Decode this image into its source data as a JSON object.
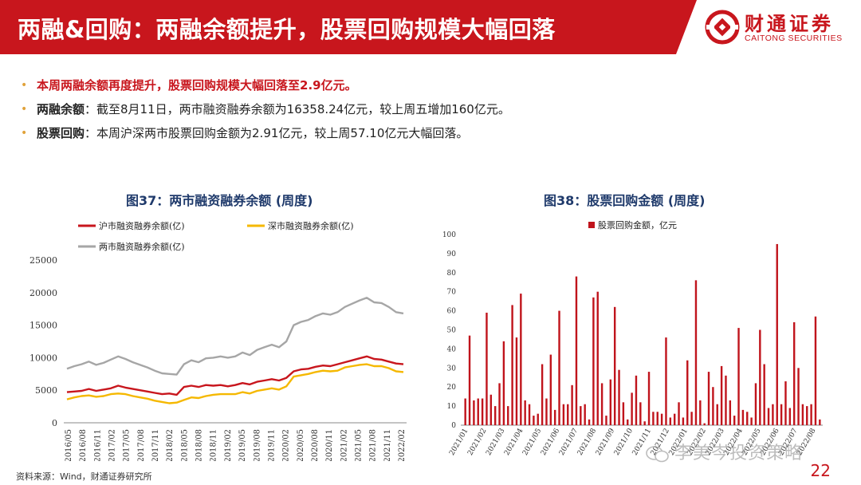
{
  "header": {
    "title": "两融&回购：两融余额提升，股票回购规模大幅回落",
    "logo_cn": "财通证券",
    "logo_en": "CAITONG SECURITIES"
  },
  "bullets": [
    {
      "head": "本周两融余额再度提升，股票回购规模大幅回落至2.9亿元。",
      "body": ""
    },
    {
      "head": "两融余额",
      "body": "：截至8月11日，两市融资融券余额为16358.24亿元，较上周五增加160亿元。"
    },
    {
      "head": "股票回购",
      "body": "：本周沪深两市股票回购金额为2.91亿元，较上周57.10亿元大幅回落。"
    }
  ],
  "fig37": {
    "title": "图37：两市融资融券余额 (周度)"
  },
  "fig38": {
    "title": "图38：股票回购金额 (周度)"
  },
  "footer": {
    "source": "资料来源：Wind，财通证券研究所",
    "page": "22",
    "watermark": "李美岑投资策略"
  },
  "colors": {
    "brand": "#c8161d",
    "sh": "#c8161d",
    "sz": "#f5b800",
    "total": "#a6a6a6",
    "bar": "#c0141c"
  },
  "chart_data": [
    {
      "type": "line",
      "title": "图37：两市融资融券余额 (周度)",
      "legend": [
        "沪市融资融券余额(亿)",
        "深市融资融券余额(亿)",
        "两市融资融券余额(亿)"
      ],
      "x_ticks": [
        "2016/05",
        "2016/08",
        "2016/11",
        "2017/02",
        "2017/05",
        "2017/08",
        "2017/11",
        "2018/02",
        "2018/05",
        "2018/08",
        "2018/11",
        "2019/02",
        "2019/05",
        "2019/08",
        "2019/11",
        "2020/02",
        "2020/05",
        "2020/08",
        "2020/11",
        "2021/02",
        "2021/05",
        "2021/08",
        "2021/11",
        "2022/02"
      ],
      "y_ticks": [
        "0",
        "5000",
        "10000",
        "15000",
        "20000",
        "25000"
      ],
      "ylim": [
        0,
        25000
      ],
      "series": [
        {
          "name": "两市融资融券余额(亿)",
          "values": [
            8300,
            8700,
            9000,
            9400,
            8900,
            9200,
            9700,
            10200,
            9800,
            9300,
            8900,
            8500,
            8000,
            7600,
            7500,
            7400,
            9000,
            9600,
            9300,
            9900,
            10000,
            10200,
            10000,
            10200,
            10800,
            10400,
            11200,
            11600,
            12000,
            11600,
            12500,
            15000,
            15500,
            15800,
            16400,
            16800,
            16600,
            17000,
            17800,
            18300,
            18800,
            19200,
            18500,
            18400,
            17800,
            17000,
            16800
          ]
        },
        {
          "name": "沪市融资融券余额(亿)",
          "values": [
            4700,
            4800,
            4900,
            5200,
            4900,
            5100,
            5300,
            5700,
            5400,
            5200,
            5000,
            4800,
            4600,
            4400,
            4500,
            4300,
            5500,
            5700,
            5500,
            5800,
            5700,
            5800,
            5600,
            5800,
            6100,
            5900,
            6300,
            6500,
            6700,
            6500,
            6900,
            7900,
            8200,
            8300,
            8600,
            8800,
            8700,
            9000,
            9300,
            9600,
            9900,
            10200,
            9800,
            9700,
            9400,
            9100,
            9000
          ]
        },
        {
          "name": "深市融资融券余额(亿)",
          "values": [
            3600,
            3900,
            4100,
            4200,
            4000,
            4100,
            4400,
            4500,
            4400,
            4100,
            3900,
            3700,
            3400,
            3200,
            3000,
            3100,
            3500,
            3900,
            3800,
            4100,
            4300,
            4400,
            4400,
            4400,
            4700,
            4500,
            4900,
            5100,
            5300,
            5100,
            5600,
            7100,
            7300,
            7500,
            7800,
            8000,
            7900,
            8000,
            8500,
            8700,
            8900,
            9000,
            8700,
            8700,
            8400,
            7900,
            7800
          ]
        }
      ]
    },
    {
      "type": "bar",
      "title": "图38：股票回购金额 (周度)",
      "legend": [
        "股票回购金额，亿元"
      ],
      "ylim": [
        0,
        100
      ],
      "y_ticks": [
        "0",
        "10",
        "20",
        "30",
        "40",
        "50",
        "60",
        "70",
        "80",
        "90",
        "100"
      ],
      "x_ticks": [
        "2021/01",
        "2021/02",
        "2021/03",
        "2021/04",
        "2021/05",
        "2021/06",
        "2021/07",
        "2021/08",
        "2021/09",
        "2021/10",
        "2021/11",
        "2021/12",
        "2022/01",
        "2022/02",
        "2022/03",
        "2022/04",
        "2022/05",
        "2022/06",
        "2022/07",
        "2022/08"
      ],
      "values": [
        14,
        47,
        13,
        14,
        14,
        59,
        16,
        10,
        22,
        44,
        10,
        63,
        46,
        69,
        13,
        11,
        5,
        6,
        32,
        14,
        37,
        8,
        60,
        11,
        11,
        21,
        78,
        10,
        11,
        3,
        67,
        70,
        22,
        5,
        24,
        62,
        29,
        12,
        3,
        17,
        26,
        12,
        2,
        28,
        7,
        7,
        6,
        46,
        4,
        6,
        12,
        4,
        34,
        7,
        76,
        13,
        1,
        28,
        20,
        11,
        31,
        26,
        13,
        5,
        51,
        8,
        7,
        4,
        22,
        50,
        32,
        9,
        11,
        95,
        11,
        23,
        9,
        54,
        30,
        11,
        10,
        11,
        57,
        3
      ]
    }
  ]
}
